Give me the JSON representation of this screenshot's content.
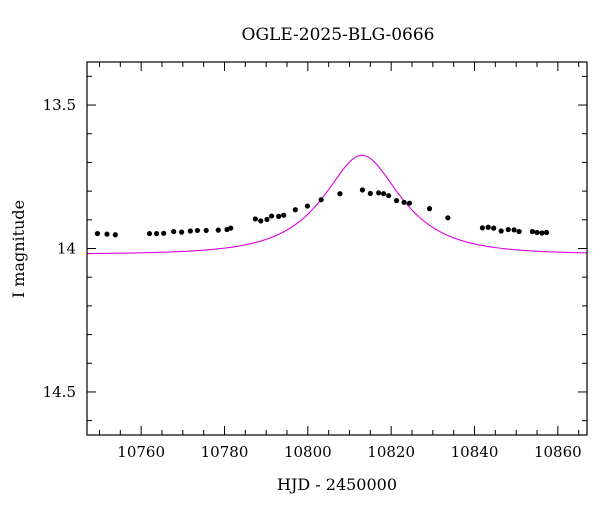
{
  "chart_data": {
    "type": "scatter",
    "title": "OGLE-2025-BLG-0666",
    "xlabel": "HJD - 2450000",
    "ylabel": "I magnitude",
    "xlim": [
      10747,
      10867
    ],
    "ylim": [
      14.65,
      13.35
    ],
    "y_inverted": true,
    "grid": false,
    "x_ticks": [
      10760,
      10780,
      10800,
      10820,
      10840,
      10860
    ],
    "y_ticks": [
      13.5,
      14,
      14.5
    ],
    "x_tick_labels": [
      "10760",
      "10780",
      "10800",
      "10820",
      "10840",
      "10860"
    ],
    "y_tick_labels": [
      "13.5",
      "14",
      "14.5"
    ],
    "colors": {
      "points": "#000000",
      "model": "#e000e0"
    },
    "series": [
      {
        "kind": "points",
        "x": [
          10749.5,
          10751.8,
          10753.8,
          10762.0,
          10763.7,
          10765.4,
          10767.8,
          10769.7,
          10771.8,
          10773.5,
          10775.6,
          10778.5,
          10780.6,
          10781.5,
          10787.4,
          10788.7,
          10790.2,
          10791.3,
          10793.0,
          10794.2,
          10797.0,
          10799.9,
          10803.2,
          10807.7,
          10813.1,
          10815.0,
          10817.0,
          10818.2,
          10819.4,
          10821.3,
          10823.1,
          10824.4,
          10829.2,
          10833.6,
          10841.9,
          10843.3,
          10844.6,
          10846.4,
          10848.1,
          10849.5,
          10850.7,
          10853.9,
          10855.0,
          10856.2,
          10857.3
        ],
        "y": [
          13.948,
          13.95,
          13.952,
          13.948,
          13.948,
          13.947,
          13.941,
          13.943,
          13.939,
          13.937,
          13.937,
          13.936,
          13.934,
          13.929,
          13.897,
          13.904,
          13.899,
          13.887,
          13.888,
          13.884,
          13.865,
          13.852,
          13.83,
          13.809,
          13.796,
          13.808,
          13.806,
          13.809,
          13.816,
          13.833,
          13.839,
          13.842,
          13.861,
          13.893,
          13.928,
          13.926,
          13.929,
          13.939,
          13.934,
          13.935,
          13.941,
          13.941,
          13.944,
          13.946,
          13.944
        ]
      },
      {
        "kind": "model",
        "u0": 0.58,
        "tE": 16,
        "t0": 10813,
        "baseline_mag": 14.02,
        "blend_fraction": 0.4
      }
    ]
  }
}
